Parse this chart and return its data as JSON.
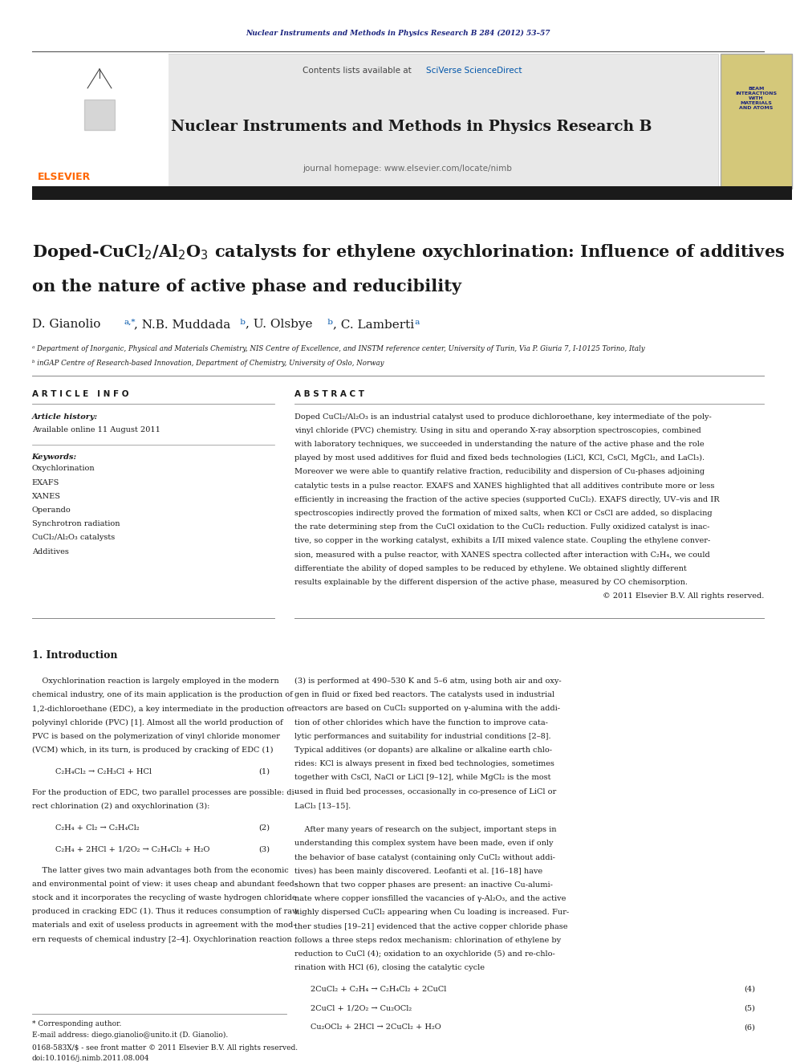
{
  "page_width": 9.92,
  "page_height": 13.23,
  "bg_color": "#ffffff",
  "journal_header_text": "Nuclear Instruments and Methods in Physics Research B 284 (2012) 53–57",
  "journal_header_color": "#1a237e",
  "contents_text": "Contents lists available at ",
  "sciverse_text": "SciVerse ScienceDirect",
  "sciverse_color": "#0055aa",
  "journal_name": "Nuclear Instruments and Methods in Physics Research B",
  "journal_homepage": "journal homepage: www.elsevier.com/locate/nimb",
  "header_bg": "#e8e8e8",
  "black_bar_color": "#1a1a1a",
  "title_line1": "Doped-CuCl$_2$/Al$_2$O$_3$ catalysts for ethylene oxychlorination: Influence of additives",
  "title_line2": "on the nature of active phase and reducibility",
  "article_info_header": "A R T I C L E   I N F O",
  "abstract_header": "A B S T R A C T",
  "article_history_label": "Article history:",
  "available_online": "Available online 11 August 2011",
  "keywords_label": "Keywords:",
  "keyword1": "Oxychlorination",
  "keyword2": "EXAFS",
  "keyword3": "XANES",
  "keyword4": "Operando",
  "keyword5": "Synchrotron radiation",
  "keyword6": "CuCl₂/Al₂O₃ catalysts",
  "keyword7": "Additives",
  "affil1": "ᵃ Department of Inorganic, Physical and Materials Chemistry, NIS Centre of Excellence, and INSTM reference center, University of Turin, Via P. Giuria 7, I-10125 Torino, Italy",
  "affil2": "ᵇ inGAP Centre of Research-based Innovation, Department of Chemistry, University of Oslo, Norway",
  "copyright": "© 2011 Elsevier B.V. All rights reserved.",
  "intro_header": "1. Introduction",
  "footnote_star": "* Corresponding author.",
  "footnote_email": "E-mail address: diego.gianolio@unito.it (D. Gianolio).",
  "footnote_issn": "0168-583X/$ - see front matter © 2011 Elsevier B.V. All rights reserved.",
  "footnote_doi": "doi:10.1016/j.nimb.2011.08.004",
  "elsevier_color": "#ff6600",
  "elsevier_text": "ELSEVIER",
  "thumb_text": "BEAM\nINTERACTIONS\nWITH\nMATERIALS\nAND ATOMS",
  "thumb_color": "#1a237e",
  "thumb_bg": "#d4c87a"
}
